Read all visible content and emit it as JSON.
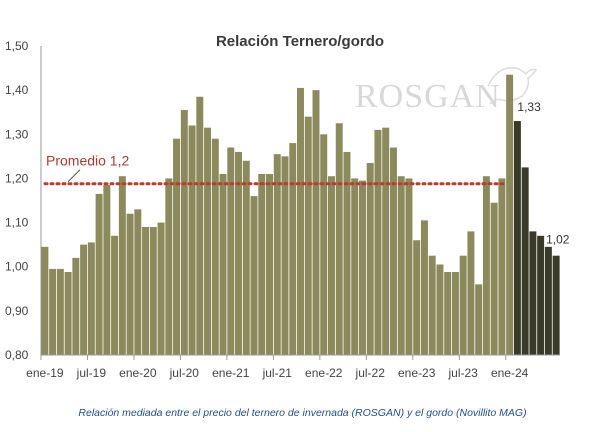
{
  "chart_data": {
    "type": "bar",
    "title": "Relación Ternero/gordo",
    "ylim": [
      0.8,
      1.5
    ],
    "yticks": [
      "0,80",
      "0,90",
      "1,00",
      "1,10",
      "1,20",
      "1,30",
      "1,40",
      "1,50"
    ],
    "ytick_values": [
      0.8,
      0.9,
      1.0,
      1.1,
      1.2,
      1.3,
      1.4,
      1.5
    ],
    "xtick_labels": [
      "ene-19",
      "jul-19",
      "ene-20",
      "jul-20",
      "ene-21",
      "jul-21",
      "ene-22",
      "jul-22",
      "ene-23",
      "jul-23",
      "ene-24"
    ],
    "xtick_index": [
      0,
      6,
      12,
      18,
      24,
      30,
      36,
      42,
      48,
      54,
      60
    ],
    "values": [
      1.045,
      0.995,
      0.995,
      0.988,
      1.02,
      1.05,
      1.055,
      1.165,
      1.185,
      1.07,
      1.205,
      1.12,
      1.13,
      1.09,
      1.09,
      1.1,
      1.2,
      1.29,
      1.355,
      1.32,
      1.385,
      1.315,
      1.29,
      1.21,
      1.27,
      1.26,
      1.24,
      1.16,
      1.21,
      1.21,
      1.255,
      1.25,
      1.28,
      1.405,
      1.34,
      1.4,
      1.3,
      1.205,
      1.325,
      1.26,
      1.2,
      1.195,
      1.235,
      1.31,
      1.315,
      1.27,
      1.205,
      1.2,
      1.06,
      1.105,
      1.025,
      1.005,
      0.988,
      0.988,
      1.025,
      1.08,
      0.96,
      1.205,
      1.145,
      1.2,
      1.435,
      1.33,
      1.225,
      1.08,
      1.07,
      1.045,
      1.025
    ],
    "highlight_from_index": 61,
    "colors": {
      "bar": "#8b8a5d",
      "highlight": "#3a3a28",
      "average": "#c0392b",
      "axis": "#999999",
      "caption": "#1f4e8c"
    },
    "average": {
      "value": 1.188,
      "label": "Promedio 1,2"
    },
    "data_labels": [
      {
        "index": 61,
        "text": "1,33"
      },
      {
        "index": 66,
        "text": "1,02"
      }
    ],
    "watermark": "ROSGAN"
  },
  "caption": "Relación mediada entre el precio del ternero de invernada (ROSGAN) y el gordo (Novillito MAG)"
}
